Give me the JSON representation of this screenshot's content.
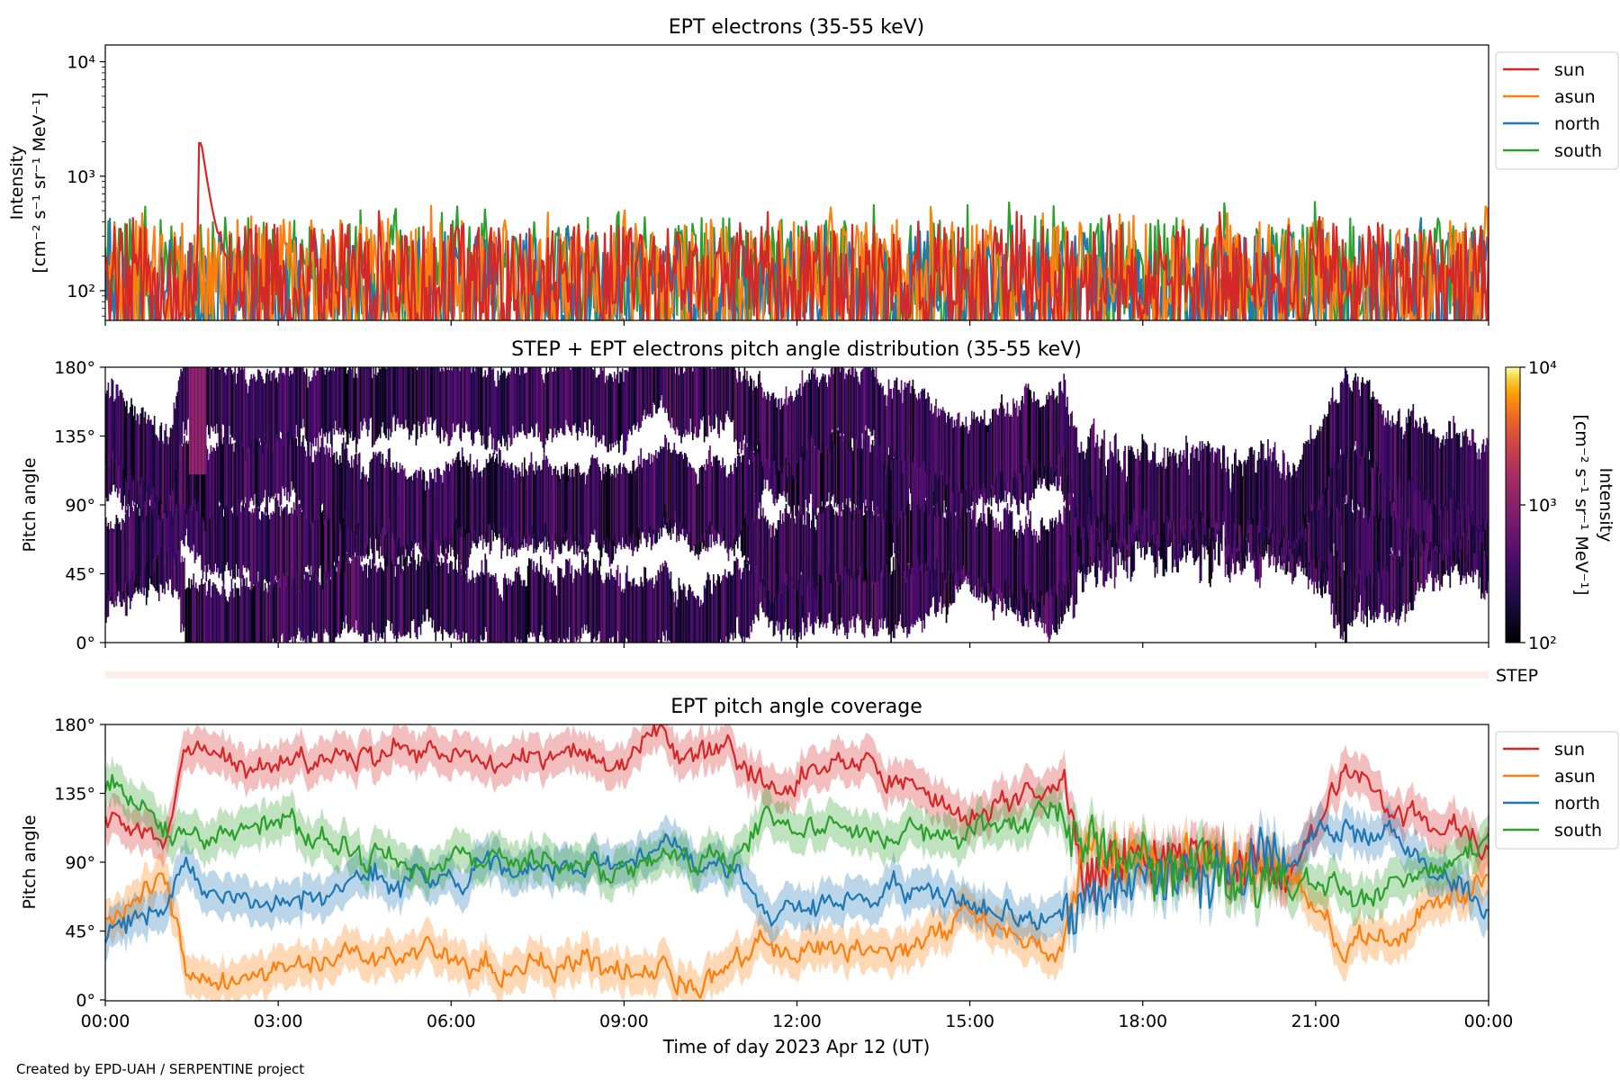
{
  "footer": "Created by EPD-UAH / SERPENTINE project",
  "colors": {
    "sun": "#d62728",
    "asun": "#ff7f0e",
    "north": "#1f77b4",
    "south": "#2ca02c",
    "step_strip": "#fdeee8"
  },
  "chart_data": [
    {
      "type": "line",
      "title": "EPT electrons (35-55 keV)",
      "ylabel": "Intensity",
      "ylabel_units": "[cm⁻² s⁻¹ sr⁻¹ MeV⁻¹]",
      "yscale": "log",
      "ylim": [
        55,
        14000
      ],
      "yticks": [
        {
          "value": 100,
          "label": "10²"
        },
        {
          "value": 1000,
          "label": "10³"
        },
        {
          "value": 10000,
          "label": "10⁴"
        }
      ],
      "xlim": [
        "2023-04-12T00:00",
        "2023-04-13T00:00"
      ],
      "legend": "outside-right",
      "legend_labels": [
        "sun",
        "asun",
        "north",
        "south"
      ],
      "series": [
        {
          "name": "sun",
          "color": "#d62728",
          "baseline": 130,
          "spike": {
            "t": "01:40",
            "peak": 1800
          }
        },
        {
          "name": "asun",
          "color": "#ff7f0e",
          "baseline": 140
        },
        {
          "name": "north",
          "color": "#1f77b4",
          "baseline": 110
        },
        {
          "name": "south",
          "color": "#2ca02c",
          "baseline": 150
        }
      ]
    },
    {
      "type": "heatmap",
      "title": "STEP + EPT electrons pitch angle distribution (35-55 keV)",
      "ylabel": "Pitch angle",
      "ylim": [
        0,
        180
      ],
      "yticks": [
        "0°",
        "45°",
        "90°",
        "135°",
        "180°"
      ],
      "colorbar": {
        "label": "Intensity",
        "units": "[cm⁻² s⁻¹ sr⁻¹ MeV⁻¹]",
        "scale": "log",
        "range": [
          100,
          10000
        ],
        "ticks": [
          "10²",
          "10³",
          "10⁴"
        ]
      },
      "xlim": [
        "2023-04-12T00:00",
        "2023-04-13T00:00"
      ]
    },
    {
      "type": "line",
      "title": "",
      "strip_label": "STEP"
    },
    {
      "type": "area",
      "title": "EPT pitch angle coverage",
      "ylabel": "Pitch angle",
      "ylim": [
        0,
        180
      ],
      "yticks": [
        "0°",
        "45°",
        "90°",
        "135°",
        "180°"
      ],
      "xlabel": "Time of day 2023 Apr 12 (UT)",
      "xticks": [
        "00:00",
        "03:00",
        "06:00",
        "09:00",
        "12:00",
        "15:00",
        "18:00",
        "21:00",
        "00:00"
      ],
      "legend": "outside-right",
      "legend_labels": [
        "sun",
        "asun",
        "north",
        "south"
      ],
      "series": [
        {
          "name": "sun",
          "color": "#d62728",
          "x_hours": [
            0,
            1,
            1.4,
            3,
            4.5,
            6,
            7.5,
            8.9,
            9.5,
            11,
            11.5,
            12.5,
            13.5,
            15,
            16.6,
            17,
            18.5,
            19.5,
            20.5,
            21.5,
            22.5,
            24
          ],
          "y": [
            120,
            110,
            160,
            152,
            160,
            155,
            158,
            160,
            165,
            160,
            135,
            150,
            148,
            115,
            142,
            85,
            92,
            95,
            88,
            150,
            120,
            100
          ]
        },
        {
          "name": "asun",
          "color": "#ff7f0e",
          "x_hours": [
            0,
            1,
            1.4,
            3,
            4.5,
            6,
            7.5,
            8.9,
            9.5,
            11,
            11.5,
            12.5,
            13.5,
            15,
            16.6,
            17,
            18.5,
            19.5,
            20.5,
            21.5,
            22.5,
            24
          ],
          "y": [
            55,
            80,
            15,
            20,
            30,
            25,
            22,
            20,
            15,
            22,
            45,
            30,
            32,
            55,
            30,
            100,
            90,
            95,
            88,
            30,
            45,
            80
          ]
        },
        {
          "name": "north",
          "color": "#1f77b4",
          "x_hours": [
            0,
            1,
            1.4,
            3,
            4.5,
            6,
            7.5,
            8.9,
            9.5,
            11,
            11.5,
            12.5,
            13.5,
            15,
            16.6,
            17,
            18.5,
            19.5,
            20.5,
            21.5,
            22.5,
            24
          ],
          "y": [
            40,
            60,
            80,
            60,
            80,
            80,
            85,
            95,
            95,
            90,
            48,
            65,
            70,
            65,
            50,
            70,
            85,
            85,
            90,
            115,
            100,
            60
          ]
        },
        {
          "name": "south",
          "color": "#2ca02c",
          "x_hours": [
            0,
            1,
            1.4,
            3,
            4.5,
            6,
            7.5,
            8.9,
            9.5,
            11,
            11.5,
            12.5,
            13.5,
            15,
            16.6,
            17,
            18.5,
            19.5,
            20.5,
            21.5,
            22.5,
            24
          ],
          "y": [
            140,
            110,
            100,
            120,
            95,
            90,
            92,
            80,
            85,
            95,
            120,
            110,
            105,
            110,
            125,
            100,
            85,
            85,
            80,
            65,
            75,
            100
          ]
        }
      ]
    }
  ]
}
